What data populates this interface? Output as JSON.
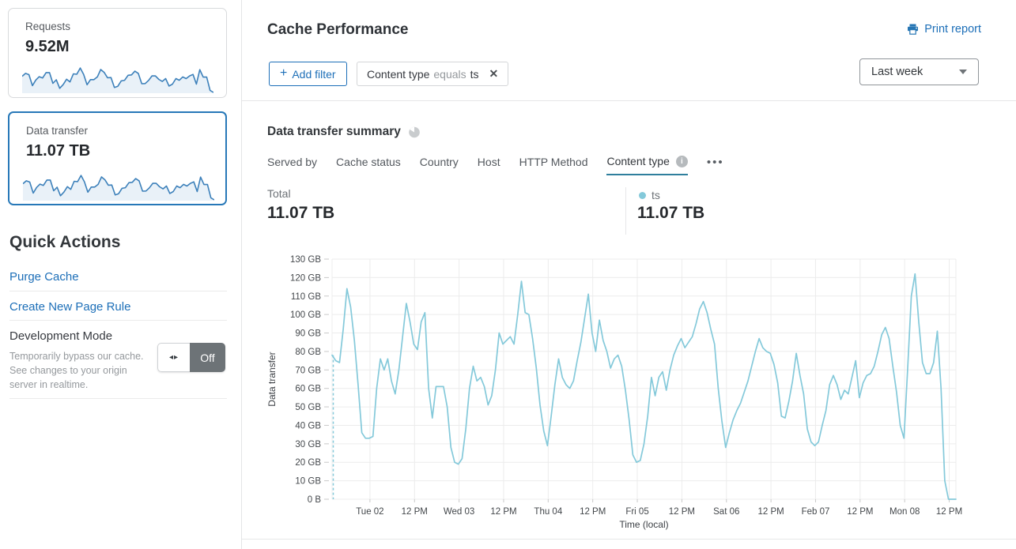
{
  "icons": {
    "toggle_arrows": "◂▸",
    "close": "✕",
    "more": "•••",
    "info": "i"
  },
  "sidebar": {
    "cards": [
      {
        "label": "Requests",
        "value": "9.52M",
        "selected": false
      },
      {
        "label": "Data transfer",
        "value": "11.07 TB",
        "selected": true
      }
    ],
    "spark_color": "#3c80ba",
    "spark_fill": "#e9f1f8",
    "quick_actions": {
      "title": "Quick Actions",
      "links": [
        "Purge Cache",
        "Create New Page Rule"
      ],
      "development_mode": {
        "title": "Development Mode",
        "description": "Temporarily bypass our cache. See changes to your origin server in realtime.",
        "toggle_state": "Off"
      }
    }
  },
  "header": {
    "title": "Cache Performance",
    "print_label": "Print report",
    "add_filter_plus": "+",
    "add_filter_label": "Add filter",
    "filter_chip": {
      "field": "Content type",
      "operator": "equals",
      "value": "ts"
    },
    "time_range": "Last week"
  },
  "summary": {
    "title": "Data transfer summary",
    "tabs": [
      "Served by",
      "Cache status",
      "Country",
      "Host",
      "HTTP Method",
      "Content type"
    ],
    "active_tab": "Content type",
    "total_label": "Total",
    "total_value": "11.07 TB",
    "legend": {
      "name": "ts",
      "value": "11.07 TB",
      "color": "#84c9da"
    }
  },
  "chart_data": {
    "type": "line",
    "title": "Data transfer summary",
    "xlabel": "Time (local)",
    "ylabel": "Data transfer",
    "y_max_gb": 130,
    "y_ticks": [
      "130 GB",
      "120 GB",
      "110 GB",
      "100 GB",
      "90 GB",
      "80 GB",
      "70 GB",
      "60 GB",
      "50 GB",
      "40 GB",
      "30 GB",
      "20 GB",
      "10 GB",
      "0 B"
    ],
    "x_ticks": [
      "Tue 02",
      "12 PM",
      "Wed 03",
      "12 PM",
      "Thu 04",
      "12 PM",
      "Fri 05",
      "12 PM",
      "Sat 06",
      "12 PM",
      "Feb 07",
      "12 PM",
      "Mon 08",
      "12 PM"
    ],
    "grid": true,
    "start_dashed_line": true,
    "line_color": "#84c9da",
    "grid_color": "#ececec",
    "series": [
      {
        "name": "ts",
        "unit": "GB",
        "interval": "1 hour",
        "values_gb": [
          78,
          75,
          74,
          92,
          114,
          104,
          86,
          62,
          36,
          33,
          33,
          34,
          60,
          76,
          70,
          76,
          64,
          57,
          70,
          88,
          106,
          96,
          84,
          81,
          96,
          101,
          60,
          44,
          61,
          61,
          61,
          50,
          28,
          20,
          19,
          22,
          38,
          60,
          72,
          64,
          66,
          61,
          51,
          56,
          70,
          90,
          84,
          86,
          88,
          84,
          100,
          118,
          101,
          100,
          87,
          71,
          51,
          37,
          29,
          45,
          62,
          76,
          66,
          62,
          60,
          64,
          75,
          85,
          98,
          111,
          90,
          80,
          97,
          86,
          80,
          71,
          76,
          78,
          72,
          59,
          43,
          24,
          20,
          21,
          30,
          45,
          66,
          56,
          66,
          69,
          59,
          70,
          78,
          83,
          87,
          82,
          85,
          88,
          95,
          103,
          107,
          101,
          92,
          84,
          60,
          42,
          28,
          36,
          43,
          48,
          52,
          58,
          64,
          72,
          80,
          87,
          82,
          80,
          79,
          73,
          63,
          45,
          44,
          53,
          64,
          79,
          67,
          57,
          38,
          31,
          29,
          31,
          40,
          48,
          62,
          67,
          62,
          54,
          59,
          57,
          66,
          75,
          55,
          63,
          67,
          68,
          72,
          80,
          89,
          93,
          87,
          72,
          58,
          40,
          33,
          70,
          110,
          122,
          96,
          74,
          68,
          68,
          74,
          91,
          60,
          10,
          0,
          0,
          0
        ]
      }
    ]
  }
}
